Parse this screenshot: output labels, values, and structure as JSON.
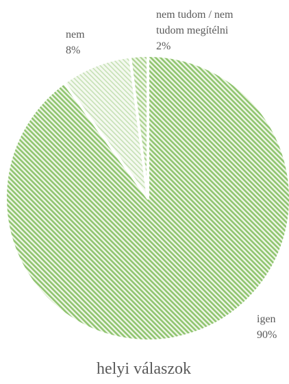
{
  "chart_data": {
    "type": "pie",
    "title": "helyi válaszok",
    "slices": [
      {
        "label": "igen",
        "value": 90,
        "value_label": "90%",
        "color": "#8fc46f",
        "pattern": "dense-diagonal"
      },
      {
        "label": "nem",
        "value": 8,
        "value_label": "8%",
        "color": "#c5e0b4",
        "pattern": "light-diagonal"
      },
      {
        "label_lines": [
          "nem tudom / nem",
          "tudom megítélni"
        ],
        "value": 2,
        "value_label": "2%",
        "color": "#a9d18e",
        "pattern": "medium-diagonal"
      }
    ],
    "start_angle_deg": 0,
    "direction": "clockwise",
    "legend": "none",
    "slice_border_color": "#ffffff"
  }
}
